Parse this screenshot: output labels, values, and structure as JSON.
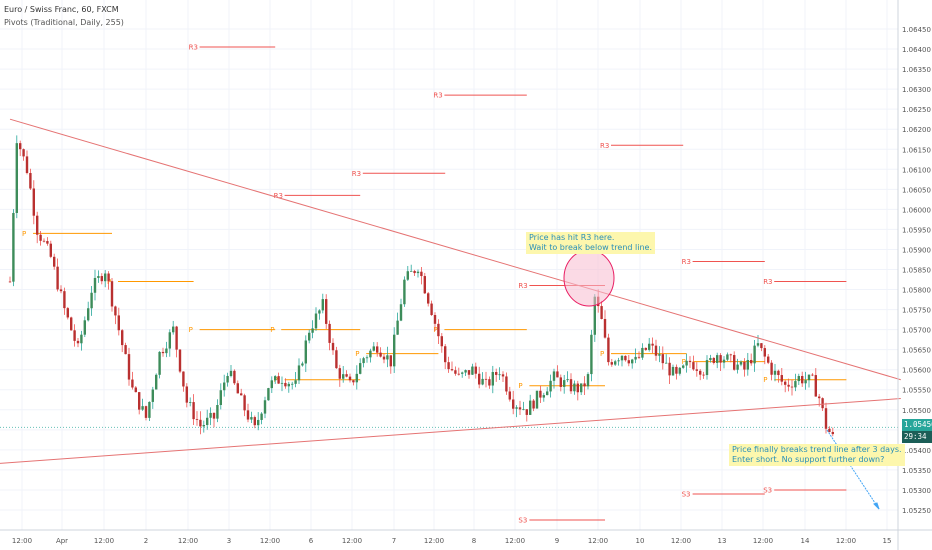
{
  "header": {
    "symbol": "Euro / Swiss Franc, 60, FXCM",
    "indicator": "Pivots (Traditional, Daily, 255)"
  },
  "annotations": {
    "note1": {
      "line1": "Price has hit R3 here.",
      "line2": "Wait to break below trend line."
    },
    "note2": {
      "line1": "Price finally breaks trend line after 3 days.",
      "line2": "Enter short. No support further down?"
    }
  },
  "price_labels": {
    "last_price": "1.05456",
    "countdown": "29:34"
  },
  "colors": {
    "up": "#26a69a",
    "down": "#ef5350",
    "candle_body_up": "#3d8c5a",
    "candle_body_down": "#b93030",
    "trendline": "#e57373",
    "pivot_r": "#ef5350",
    "pivot_p": "#ff9800",
    "pivot_s": "#ef5350",
    "arrow": "#42a5f5",
    "circle_fill": "#f8bbd0",
    "circle_stroke": "#e91e63",
    "note_bg": "#fdf7ad",
    "note_text": "#2a8fb8",
    "last_price_bg": "#26a69a",
    "countdown_bg": "#1b5e57"
  },
  "chart_data": {
    "type": "candlestick",
    "title": "Euro / Swiss Franc, 60, FXCM",
    "y_axis": {
      "range": [
        1.05225,
        1.06475
      ],
      "ticks": [
        "1.05250",
        "1.05300",
        "1.05350",
        "1.05400",
        "1.05450",
        "1.05500",
        "1.05550",
        "1.05600",
        "1.05650",
        "1.05700",
        "1.05750",
        "1.05800",
        "1.05850",
        "1.05900",
        "1.05950",
        "1.06000",
        "1.06050",
        "1.06100",
        "1.06150",
        "1.06200",
        "1.06250",
        "1.06300",
        "1.06350",
        "1.06400",
        "1.06450"
      ]
    },
    "x_axis": {
      "ticks": [
        "12:00",
        "Apr",
        "12:00",
        "2",
        "12:00",
        "3",
        "12:00",
        "6",
        "12:00",
        "7",
        "12:00",
        "8",
        "12:00",
        "9",
        "12:00",
        "10",
        "12:00",
        "13",
        "12:00",
        "14",
        "12:00",
        "15"
      ]
    },
    "last_price": 1.05456,
    "trendlines": [
      {
        "name": "upper",
        "from": {
          "x": 0,
          "y": 1.06225
        },
        "to": {
          "x": 262,
          "y": 1.05575
        }
      },
      {
        "name": "lower",
        "from": {
          "x": -5,
          "y": 1.05365
        },
        "to": {
          "x": 262,
          "y": 1.05528
        }
      }
    ],
    "pivots": [
      {
        "label": "R3",
        "x0": 54,
        "x1": 78,
        "y": 1.06405
      },
      {
        "label": "R3",
        "x0": 126,
        "x1": 152,
        "y": 1.06285
      },
      {
        "label": "R3",
        "x0": 175,
        "x1": 198,
        "y": 1.0616
      },
      {
        "label": "R3",
        "x0": 102,
        "x1": 128,
        "y": 1.0609
      },
      {
        "label": "R3",
        "x0": 79,
        "x1": 103,
        "y": 1.06035
      },
      {
        "label": "R3",
        "x0": 151,
        "x1": 175,
        "y": 1.0581
      },
      {
        "label": "R3",
        "x0": 199,
        "x1": 222,
        "y": 1.0587
      },
      {
        "label": "R3",
        "x0": 223,
        "x1": 246,
        "y": 1.0582
      },
      {
        "label": "P",
        "x0": 5,
        "x1": 30,
        "y": 1.0594
      },
      {
        "label": "P",
        "x0": 30,
        "x1": 54,
        "y": 1.0582
      },
      {
        "label": "P",
        "x0": 54,
        "x1": 78,
        "y": 1.057
      },
      {
        "label": "P",
        "x0": 78,
        "x1": 103,
        "y": 1.057
      },
      {
        "label": "P",
        "x0": 79,
        "x1": 103,
        "y": 1.05575
      },
      {
        "label": "P",
        "x0": 103,
        "x1": 126,
        "y": 1.0564
      },
      {
        "label": "P",
        "x0": 126,
        "x1": 152,
        "y": 1.057
      },
      {
        "label": "P",
        "x0": 151,
        "x1": 175,
        "y": 1.0556
      },
      {
        "label": "P",
        "x0": 175,
        "x1": 199,
        "y": 1.0564
      },
      {
        "label": "P",
        "x0": 199,
        "x1": 222,
        "y": 1.0562
      },
      {
        "label": "P",
        "x0": 223,
        "x1": 246,
        "y": 1.05575
      },
      {
        "label": "S3",
        "x0": 199,
        "x1": 222,
        "y": 1.0529
      },
      {
        "label": "S3",
        "x0": 223,
        "x1": 246,
        "y": 1.053
      },
      {
        "label": "S3",
        "x0": 151,
        "x1": 175,
        "y": 1.05225
      }
    ]
  }
}
